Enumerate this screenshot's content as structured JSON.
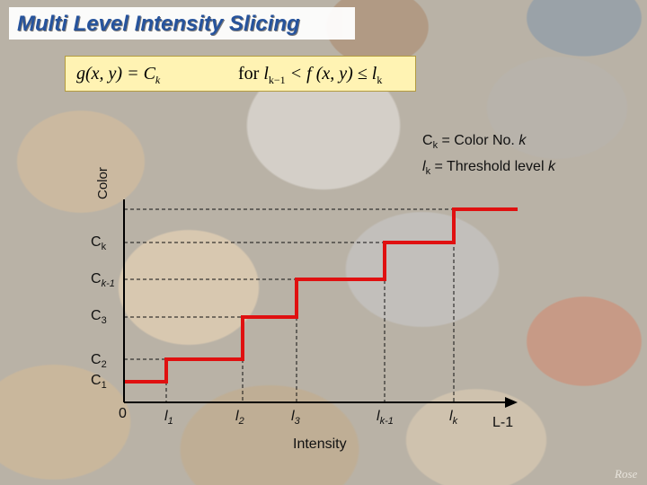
{
  "slide": {
    "title": "Multi Level Intensity Slicing",
    "watermark": "Rose"
  },
  "formula": {
    "lhs_text": "g(x, y) = C",
    "lhs_sub": "k",
    "rhs_for": "for ",
    "rhs_l1": "l",
    "rhs_l1_sub": "k−1",
    "rhs_mid": " < f (x, y) ≤ ",
    "rhs_l2": "l",
    "rhs_l2_sub": "k"
  },
  "legend": {
    "line1_var": "C",
    "line1_sub": "k",
    "line1_text": " = Color No. ",
    "line1_k": "k",
    "line2_var": "l",
    "line2_sub": "k",
    "line2_text": " = Threshold level ",
    "line2_k": "k"
  },
  "axes": {
    "x_label": "Intensity",
    "y_label": "Color",
    "origin": "0",
    "x_end": "L-1"
  },
  "y_ticks": [
    {
      "var": "C",
      "sub": "k"
    },
    {
      "var": "C",
      "sub": "k-1"
    },
    {
      "var": "C",
      "sub": "3"
    },
    {
      "var": "C",
      "sub": "2"
    },
    {
      "var": "C",
      "sub": "1"
    }
  ],
  "x_ticks": [
    {
      "var": "l",
      "sub": "1"
    },
    {
      "var": "l",
      "sub": "2"
    },
    {
      "var": "l",
      "sub": "3"
    },
    {
      "var": "l",
      "sub": "k-1"
    },
    {
      "var": "l",
      "sub": "k"
    }
  ],
  "colors": {
    "step": "#e01010",
    "axis": "#000000",
    "title": "#1f4e9c",
    "formula_bg": "#fff3b3"
  }
}
